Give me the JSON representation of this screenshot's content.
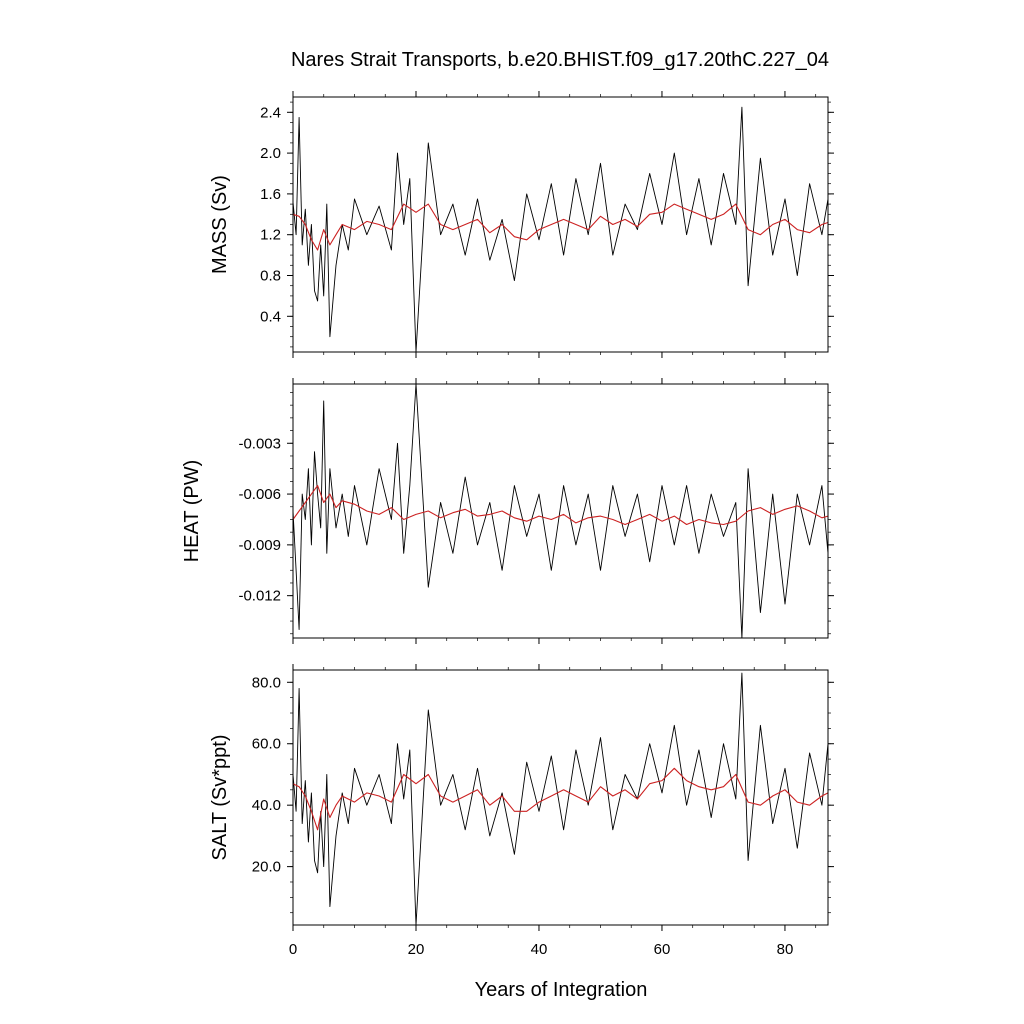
{
  "title": "Nares Strait Transports, b.e20.BHIST.f09_g17.20thC.227_04",
  "xlabel": "Years of Integration",
  "colors": {
    "raw": "#000000",
    "smooth": "#cc2222",
    "frame": "#000000"
  },
  "chart_data": [
    {
      "type": "line",
      "ylabel": "MASS (Sv)",
      "xlim": [
        0,
        87
      ],
      "ylim": [
        0.05,
        2.55
      ],
      "xticks": [
        0,
        20,
        40,
        60,
        80
      ],
      "xtick_labels": [
        "0",
        "20",
        "40",
        "60",
        "80"
      ],
      "yticks": [
        0.4,
        0.8,
        1.2,
        1.6,
        2.0,
        2.4
      ],
      "ytick_labels": [
        "0.4",
        "0.8",
        "1.2",
        "1.6",
        "2.0",
        "2.4"
      ],
      "show_x_labels": false,
      "series": [
        {
          "style": "raw",
          "x": [
            0,
            0.5,
            1,
            1.5,
            2,
            2.5,
            3,
            3.5,
            4,
            4.5,
            5,
            5.5,
            6,
            7,
            8,
            9,
            10,
            12,
            14,
            16,
            17,
            18,
            19,
            20,
            22,
            24,
            26,
            28,
            30,
            32,
            34,
            36,
            38,
            40,
            42,
            44,
            46,
            48,
            50,
            52,
            54,
            56,
            58,
            60,
            62,
            64,
            66,
            68,
            70,
            72,
            73,
            74,
            76,
            78,
            80,
            82,
            84,
            86,
            87
          ],
          "y": [
            1.52,
            1.2,
            2.35,
            1.1,
            1.45,
            0.9,
            1.3,
            0.65,
            0.55,
            1.1,
            0.6,
            1.5,
            0.2,
            0.9,
            1.3,
            1.05,
            1.55,
            1.2,
            1.48,
            1.05,
            2.0,
            1.3,
            1.75,
            0.05,
            2.1,
            1.2,
            1.5,
            1.0,
            1.55,
            0.95,
            1.35,
            0.75,
            1.6,
            1.15,
            1.7,
            1.0,
            1.75,
            1.2,
            1.9,
            1.0,
            1.5,
            1.25,
            1.8,
            1.3,
            2.0,
            1.2,
            1.75,
            1.1,
            1.8,
            1.3,
            2.45,
            0.7,
            1.95,
            1.0,
            1.55,
            0.8,
            1.7,
            1.2,
            1.55
          ]
        },
        {
          "style": "smooth",
          "x": [
            0,
            1,
            2,
            3,
            4,
            5,
            6,
            7,
            8,
            10,
            12,
            14,
            16,
            18,
            20,
            22,
            24,
            26,
            28,
            30,
            32,
            34,
            36,
            38,
            40,
            42,
            44,
            46,
            48,
            50,
            52,
            54,
            56,
            58,
            60,
            62,
            64,
            66,
            68,
            70,
            72,
            74,
            76,
            78,
            80,
            82,
            84,
            86,
            87
          ],
          "y": [
            1.4,
            1.38,
            1.3,
            1.15,
            1.05,
            1.25,
            1.1,
            1.2,
            1.3,
            1.25,
            1.33,
            1.3,
            1.25,
            1.5,
            1.42,
            1.5,
            1.3,
            1.25,
            1.3,
            1.35,
            1.22,
            1.3,
            1.18,
            1.15,
            1.25,
            1.3,
            1.35,
            1.3,
            1.25,
            1.38,
            1.3,
            1.35,
            1.28,
            1.4,
            1.42,
            1.5,
            1.45,
            1.4,
            1.35,
            1.4,
            1.5,
            1.25,
            1.2,
            1.3,
            1.35,
            1.25,
            1.22,
            1.3,
            1.32
          ]
        }
      ]
    },
    {
      "type": "line",
      "ylabel": "HEAT (PW)",
      "xlim": [
        0,
        87
      ],
      "ylim": [
        -0.0145,
        0.0005
      ],
      "xticks": [
        0,
        20,
        40,
        60,
        80
      ],
      "xtick_labels": [
        "0",
        "20",
        "40",
        "60",
        "80"
      ],
      "yticks": [
        -0.012,
        -0.009,
        -0.006,
        -0.003
      ],
      "ytick_labels": [
        "-0.012",
        "-0.009",
        "-0.006",
        "-0.003"
      ],
      "show_x_labels": false,
      "series": [
        {
          "style": "raw",
          "x": [
            0,
            0.5,
            1,
            1.5,
            2,
            2.5,
            3,
            3.5,
            4,
            4.5,
            5,
            5.5,
            6,
            7,
            8,
            9,
            10,
            12,
            14,
            16,
            17,
            18,
            19,
            20,
            22,
            24,
            26,
            28,
            30,
            32,
            34,
            36,
            38,
            40,
            42,
            44,
            46,
            48,
            50,
            52,
            54,
            56,
            58,
            60,
            62,
            64,
            66,
            68,
            70,
            72,
            73,
            74,
            76,
            78,
            80,
            82,
            84,
            86,
            87
          ],
          "y": [
            -0.007,
            -0.0105,
            -0.014,
            -0.006,
            -0.0075,
            -0.0045,
            -0.009,
            -0.0035,
            -0.006,
            -0.008,
            -0.0005,
            -0.0095,
            -0.0045,
            -0.008,
            -0.006,
            -0.0085,
            -0.0055,
            -0.009,
            -0.0045,
            -0.0075,
            -0.003,
            -0.0095,
            -0.0055,
            0.0005,
            -0.0115,
            -0.0065,
            -0.0095,
            -0.005,
            -0.009,
            -0.0065,
            -0.0105,
            -0.0055,
            -0.0085,
            -0.006,
            -0.0105,
            -0.0055,
            -0.009,
            -0.006,
            -0.0105,
            -0.0055,
            -0.0085,
            -0.006,
            -0.01,
            -0.0055,
            -0.009,
            -0.0055,
            -0.0095,
            -0.006,
            -0.0085,
            -0.0065,
            -0.0145,
            -0.0045,
            -0.013,
            -0.006,
            -0.0125,
            -0.006,
            -0.009,
            -0.0055,
            -0.0095
          ]
        },
        {
          "style": "smooth",
          "x": [
            0,
            1,
            2,
            3,
            4,
            5,
            6,
            7,
            8,
            10,
            12,
            14,
            16,
            18,
            20,
            22,
            24,
            26,
            28,
            30,
            32,
            34,
            36,
            38,
            40,
            42,
            44,
            46,
            48,
            50,
            52,
            54,
            56,
            58,
            60,
            62,
            64,
            66,
            68,
            70,
            72,
            74,
            76,
            78,
            80,
            82,
            84,
            86,
            87
          ],
          "y": [
            -0.0075,
            -0.007,
            -0.0065,
            -0.006,
            -0.0055,
            -0.0065,
            -0.006,
            -0.0068,
            -0.0064,
            -0.0066,
            -0.007,
            -0.0072,
            -0.0068,
            -0.0075,
            -0.0072,
            -0.007,
            -0.0074,
            -0.0071,
            -0.0069,
            -0.0073,
            -0.0072,
            -0.007,
            -0.0074,
            -0.0076,
            -0.0073,
            -0.0075,
            -0.0072,
            -0.0077,
            -0.0074,
            -0.0073,
            -0.0075,
            -0.0078,
            -0.0075,
            -0.0072,
            -0.0076,
            -0.0073,
            -0.0078,
            -0.0075,
            -0.0077,
            -0.0078,
            -0.0076,
            -0.007,
            -0.0068,
            -0.0072,
            -0.0069,
            -0.0067,
            -0.007,
            -0.0074,
            -0.0073
          ]
        }
      ]
    },
    {
      "type": "line",
      "ylabel": "SALT (Sv*ppt)",
      "xlim": [
        0,
        87
      ],
      "ylim": [
        1,
        84
      ],
      "xticks": [
        0,
        20,
        40,
        60,
        80
      ],
      "xtick_labels": [
        "0",
        "20",
        "40",
        "60",
        "80"
      ],
      "yticks": [
        20.0,
        40.0,
        60.0,
        80.0
      ],
      "ytick_labels": [
        "20.0",
        "40.0",
        "60.0",
        "80.0"
      ],
      "show_x_labels": true,
      "series": [
        {
          "style": "raw",
          "x": [
            0,
            0.5,
            1,
            1.5,
            2,
            2.5,
            3,
            3.5,
            4,
            4.5,
            5,
            5.5,
            6,
            7,
            8,
            9,
            10,
            12,
            14,
            16,
            17,
            18,
            19,
            20,
            22,
            24,
            26,
            28,
            30,
            32,
            34,
            36,
            38,
            40,
            42,
            44,
            46,
            48,
            50,
            52,
            54,
            56,
            58,
            60,
            62,
            64,
            66,
            68,
            70,
            72,
            73,
            74,
            76,
            78,
            80,
            82,
            84,
            86,
            87
          ],
          "y": [
            50,
            38,
            78,
            34,
            48,
            28,
            44,
            22,
            18,
            38,
            20,
            50,
            7,
            30,
            44,
            34,
            52,
            40,
            50,
            34,
            60,
            42,
            58,
            1,
            71,
            40,
            50,
            32,
            52,
            30,
            44,
            24,
            54,
            38,
            56,
            32,
            58,
            40,
            62,
            32,
            50,
            42,
            60,
            44,
            66,
            40,
            58,
            36,
            60,
            42,
            83,
            22,
            66,
            34,
            52,
            26,
            57,
            40,
            60
          ]
        },
        {
          "style": "smooth",
          "x": [
            0,
            1,
            2,
            3,
            4,
            5,
            6,
            7,
            8,
            10,
            12,
            14,
            16,
            18,
            20,
            22,
            24,
            26,
            28,
            30,
            32,
            34,
            36,
            38,
            40,
            42,
            44,
            46,
            48,
            50,
            52,
            54,
            56,
            58,
            60,
            62,
            64,
            66,
            68,
            70,
            72,
            74,
            76,
            78,
            80,
            82,
            84,
            86,
            87
          ],
          "y": [
            47,
            46,
            43,
            38,
            32,
            42,
            36,
            40,
            43,
            41,
            44,
            43,
            41,
            50,
            47,
            50,
            43,
            41,
            43,
            45,
            40,
            43,
            38,
            38,
            41,
            43,
            45,
            43,
            41,
            46,
            43,
            45,
            42,
            47,
            48,
            52,
            48,
            46,
            45,
            46,
            50,
            41,
            40,
            43,
            45,
            41,
            40,
            43,
            44
          ]
        }
      ]
    }
  ]
}
